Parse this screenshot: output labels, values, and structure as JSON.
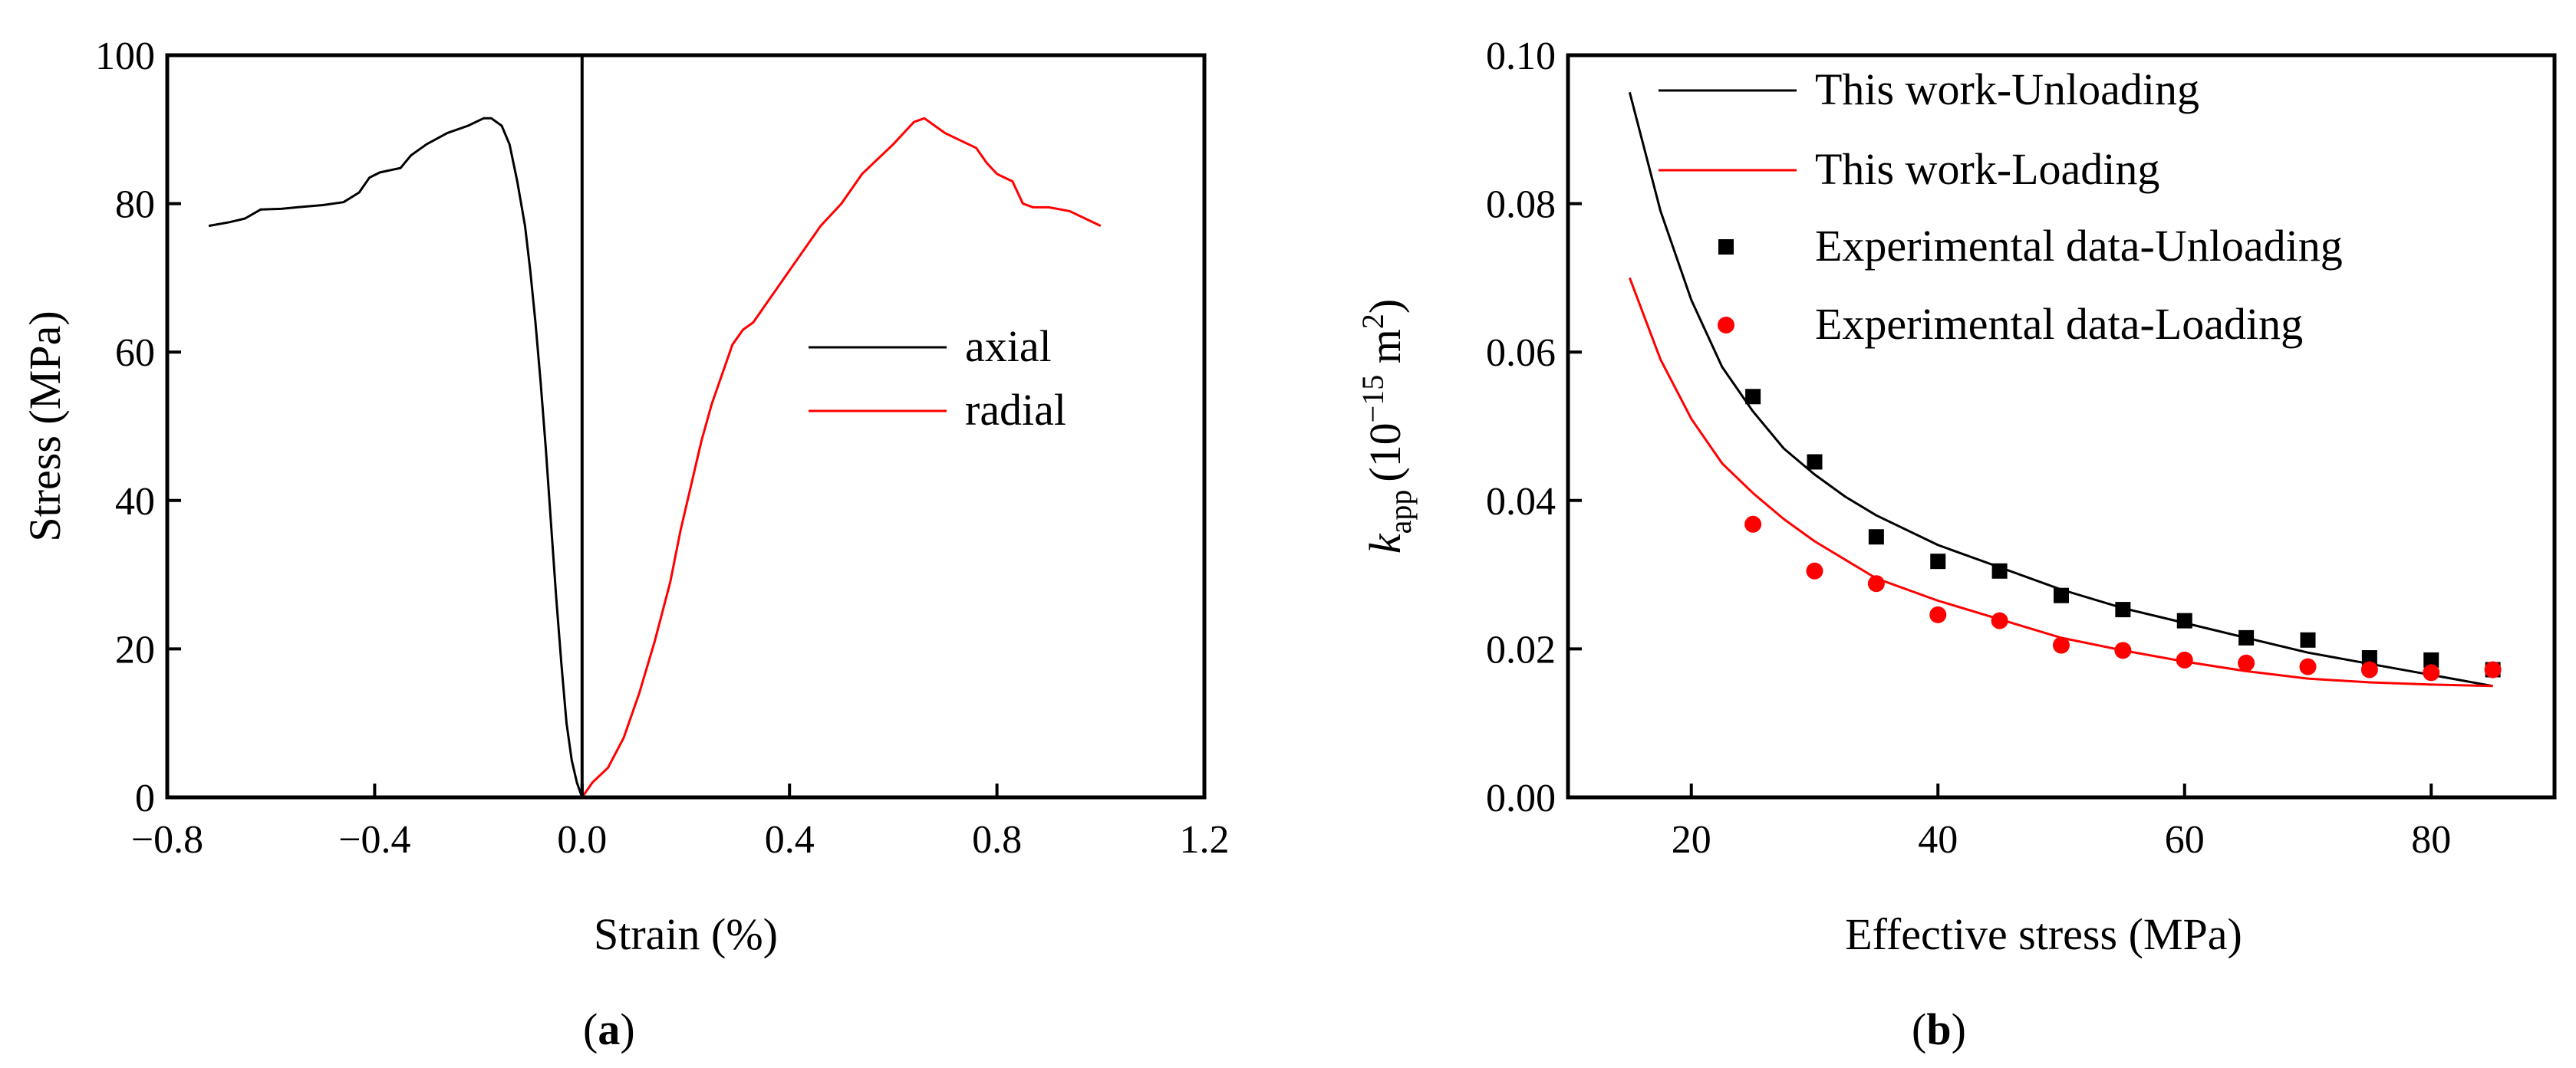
{
  "chart_data": [
    {
      "type": "line",
      "panel": "(a)",
      "panel_letter": "a",
      "xlabel": "Strain (%)",
      "ylabel": "Stress (MPa)",
      "xlim": [
        -0.8,
        1.2
      ],
      "ylim": [
        0,
        100
      ],
      "xticks": [
        -0.8,
        -0.4,
        0.0,
        0.4,
        0.8,
        1.2
      ],
      "xtick_labels": [
        "−0.8",
        "−0.4",
        "0.0",
        "0.4",
        "0.8",
        "1.2"
      ],
      "yticks": [
        0,
        20,
        40,
        60,
        80,
        100
      ],
      "ytick_labels": [
        "0",
        "20",
        "40",
        "60",
        "80",
        "100"
      ],
      "legend_position": "center-right",
      "series": [
        {
          "name": "axial",
          "color": "#000000",
          "x": [
            -0.72,
            -0.68,
            -0.65,
            -0.62,
            -0.58,
            -0.55,
            -0.5,
            -0.46,
            -0.43,
            -0.41,
            -0.39,
            -0.35,
            -0.33,
            -0.3,
            -0.26,
            -0.22,
            -0.19,
            -0.175,
            -0.155,
            -0.14,
            -0.125,
            -0.11,
            -0.1,
            -0.09,
            -0.08,
            -0.07,
            -0.06,
            -0.05,
            -0.04,
            -0.03,
            -0.02,
            -0.01,
            0.0
          ],
          "y": [
            77,
            77.5,
            78,
            79.2,
            79.3,
            79.5,
            79.8,
            80.2,
            81.5,
            83.5,
            84.2,
            84.8,
            86.5,
            88,
            89.5,
            90.5,
            91.5,
            91.5,
            90.5,
            88,
            83,
            77,
            71,
            64,
            56,
            47,
            37,
            27,
            18,
            10,
            5,
            2,
            0
          ]
        },
        {
          "name": "radial",
          "color": "#ff0000",
          "x": [
            0.0,
            0.02,
            0.05,
            0.08,
            0.11,
            0.14,
            0.17,
            0.19,
            0.21,
            0.23,
            0.25,
            0.27,
            0.29,
            0.31,
            0.33,
            0.35,
            0.37,
            0.4,
            0.43,
            0.46,
            0.5,
            0.54,
            0.57,
            0.6,
            0.62,
            0.64,
            0.66,
            0.68,
            0.7,
            0.73,
            0.76,
            0.78,
            0.8,
            0.83,
            0.85,
            0.87,
            0.9,
            0.94,
            0.97,
            1.0
          ],
          "y": [
            0,
            2,
            4,
            8,
            14,
            21,
            29,
            36,
            42,
            48,
            53,
            57,
            61,
            63,
            64,
            66,
            68,
            71,
            74,
            77,
            80,
            84,
            86,
            88,
            89.5,
            91,
            91.5,
            90.5,
            89.5,
            88.5,
            87.5,
            85.5,
            84,
            83,
            80,
            79.5,
            79.5,
            79,
            78,
            77
          ]
        }
      ]
    },
    {
      "type": "line+scatter",
      "panel": "(b)",
      "panel_letter": "b",
      "xlabel": "Effective stress (MPa)",
      "ylabel": "k_app (10^-15 m^2)",
      "ylabel_parts": {
        "k": "k",
        "sub": "app",
        "open": "(10",
        "exp": "−15",
        "unit": " m",
        "sq": "2",
        "close": ")"
      },
      "xlim": [
        10,
        90
      ],
      "ylim": [
        0.0,
        0.1
      ],
      "xticks": [
        20,
        40,
        60,
        80
      ],
      "xtick_labels": [
        "20",
        "40",
        "60",
        "80"
      ],
      "yticks": [
        0.0,
        0.02,
        0.04,
        0.06,
        0.08,
        0.1
      ],
      "ytick_labels": [
        "0.00",
        "0.02",
        "0.04",
        "0.06",
        "0.08",
        "0.10"
      ],
      "legend_position": "top-right",
      "series": [
        {
          "name": "This work-Unloading",
          "kind": "line",
          "color": "#000000",
          "x": [
            15,
            17.5,
            20,
            22.5,
            25,
            27.5,
            30,
            32.5,
            35,
            40,
            45,
            50,
            55,
            60,
            65,
            70,
            75,
            80,
            85
          ],
          "y": [
            0.095,
            0.079,
            0.067,
            0.058,
            0.052,
            0.047,
            0.0435,
            0.0405,
            0.038,
            0.034,
            0.031,
            0.028,
            0.0255,
            0.0235,
            0.0215,
            0.0195,
            0.018,
            0.0165,
            0.015
          ]
        },
        {
          "name": "This work-Loading",
          "kind": "line",
          "color": "#ff0000",
          "x": [
            15,
            17.5,
            20,
            22.5,
            25,
            27.5,
            30,
            32.5,
            35,
            40,
            45,
            50,
            55,
            60,
            65,
            70,
            75,
            80,
            85
          ],
          "y": [
            0.07,
            0.059,
            0.051,
            0.045,
            0.041,
            0.0375,
            0.0345,
            0.032,
            0.0295,
            0.0265,
            0.024,
            0.0215,
            0.0198,
            0.0183,
            0.017,
            0.016,
            0.0155,
            0.0152,
            0.015
          ]
        },
        {
          "name": "Experimental data-Unloading",
          "kind": "scatter",
          "marker": "square",
          "color": "#000000",
          "x": [
            25,
            30,
            35,
            40,
            45,
            50,
            55,
            60,
            65,
            70,
            75,
            80,
            85
          ],
          "y": [
            0.054,
            0.0452,
            0.0351,
            0.0318,
            0.0305,
            0.0272,
            0.0253,
            0.0238,
            0.0215,
            0.0212,
            0.0188,
            0.0185,
            0.0172
          ]
        },
        {
          "name": "Experimental data-Loading",
          "kind": "scatter",
          "marker": "circle",
          "color": "#ff0000",
          "x": [
            25,
            30,
            35,
            40,
            45,
            50,
            55,
            60,
            65,
            70,
            75,
            80,
            85
          ],
          "y": [
            0.0368,
            0.0305,
            0.0288,
            0.0246,
            0.0238,
            0.0205,
            0.0198,
            0.0185,
            0.0181,
            0.0176,
            0.0172,
            0.0168,
            0.0172
          ]
        }
      ]
    }
  ]
}
